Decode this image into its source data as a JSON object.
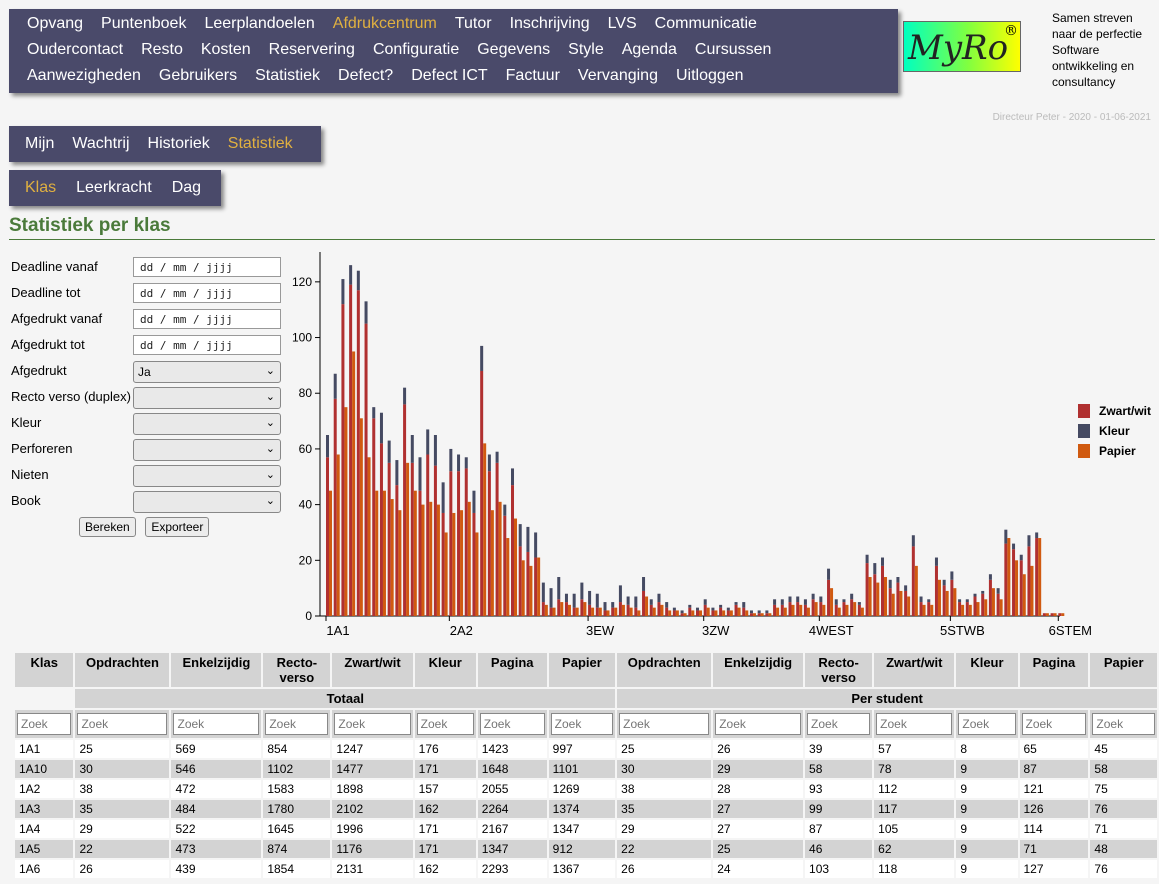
{
  "top_nav": {
    "rows": [
      [
        "Opvang",
        "Puntenboek",
        "Leerplandoelen",
        "Afdrukcentrum",
        "Tutor",
        "Inschrijving",
        "LVS",
        "Communicatie"
      ],
      [
        "Oudercontact",
        "Resto",
        "Kosten",
        "Reservering",
        "Configuratie",
        "Gegevens",
        "Style",
        "Agenda",
        "Cursussen"
      ],
      [
        "Aanwezigheden",
        "Gebruikers",
        "Statistiek",
        "Defect?",
        "Defect ICT",
        "Factuur",
        "Vervanging",
        "Uitloggen"
      ]
    ],
    "active": "Afdrukcentrum"
  },
  "logo": {
    "text": "MyRo",
    "reg": "®"
  },
  "tagline": "Samen streven naar de perfectie Software ontwikkeling en consultancy",
  "user_line": "Directeur Peter - 2020 - 01-06-2021",
  "sub_nav": {
    "items": [
      "Mijn",
      "Wachtrij",
      "Historiek",
      "Statistiek"
    ],
    "active": "Statistiek"
  },
  "sub_nav2": {
    "items": [
      "Klas",
      "Leerkracht",
      "Dag"
    ],
    "active": "Klas"
  },
  "page_title": "Statistiek per klas",
  "filters": {
    "deadline_from": {
      "label": "Deadline vanaf",
      "placeholder": "dd / mm / jjjj"
    },
    "deadline_to": {
      "label": "Deadline tot",
      "placeholder": "dd / mm / jjjj"
    },
    "printed_from": {
      "label": "Afgedrukt vanaf",
      "placeholder": "dd / mm / jjjj"
    },
    "printed_to": {
      "label": "Afgedrukt tot",
      "placeholder": "dd / mm / jjjj"
    },
    "printed": {
      "label": "Afgedrukt",
      "value": "Ja"
    },
    "duplex": {
      "label": "Recto verso (duplex)",
      "value": ""
    },
    "color": {
      "label": "Kleur",
      "value": ""
    },
    "perforate": {
      "label": "Perforeren",
      "value": ""
    },
    "staple": {
      "label": "Nieten",
      "value": ""
    },
    "book": {
      "label": "Book",
      "value": ""
    },
    "calc_button": "Bereken",
    "export_button": "Exporteer"
  },
  "chart_data": {
    "type": "bar",
    "ylim": [
      0,
      130
    ],
    "yticks": [
      0,
      20,
      40,
      60,
      80,
      100,
      120
    ],
    "x_labels": [
      "1A1",
      "2A2",
      "3EW",
      "3ZW",
      "4WEST",
      "5STWB",
      "6STEM"
    ],
    "colors": {
      "Zwart/wit": "#b03030",
      "Kleur": "#454a62",
      "Papier": "#d05a10"
    },
    "legend": [
      "Zwart/wit",
      "Kleur",
      "Papier"
    ],
    "legend_position": "right",
    "series": [
      {
        "name": "Zwart/wit",
        "values": [
          57,
          78,
          112,
          119,
          117,
          105,
          71,
          62,
          55,
          47,
          76,
          55,
          45,
          58,
          54,
          37,
          52,
          52,
          53,
          37,
          88,
          52,
          55,
          36,
          47,
          25,
          23,
          21,
          5,
          3,
          6,
          5,
          3,
          6,
          4,
          3,
          2,
          3,
          5,
          4,
          3,
          9,
          4,
          5,
          3,
          2,
          1,
          3,
          2,
          4,
          2,
          3,
          2,
          4,
          3,
          1,
          1,
          1,
          4,
          4,
          5,
          5,
          4,
          6,
          5,
          13,
          4,
          5,
          6,
          4,
          19,
          15,
          18,
          10,
          12,
          9,
          25,
          5,
          5,
          18,
          11,
          13,
          5,
          5,
          7,
          8,
          13,
          8,
          26,
          24,
          20,
          25,
          28,
          1,
          1,
          1
        ]
      },
      {
        "name": "Kleur",
        "values": [
          8,
          9,
          9,
          7,
          7,
          8,
          4,
          11,
          8,
          9,
          6,
          10,
          12,
          9,
          11,
          11,
          8,
          6,
          4,
          8,
          9,
          6,
          4,
          4,
          6,
          8,
          9,
          9,
          7,
          7,
          8,
          3,
          5,
          6,
          5,
          5,
          3,
          2,
          6,
          3,
          4,
          5,
          2,
          3,
          2,
          1,
          1,
          1,
          1,
          2,
          1,
          1,
          1,
          1,
          2,
          1,
          1,
          1,
          2,
          2,
          2,
          2,
          2,
          2,
          2,
          4,
          2,
          1,
          2,
          1,
          3,
          4,
          3,
          3,
          2,
          2,
          4,
          2,
          1,
          3,
          2,
          3,
          1,
          1,
          1,
          1,
          2,
          2,
          5,
          2,
          2,
          4,
          2,
          0,
          0,
          0
        ]
      },
      {
        "name": "Papier",
        "values": [
          45,
          58,
          75,
          95,
          71,
          57,
          45,
          45,
          42,
          38,
          55,
          45,
          40,
          41,
          40,
          30,
          37,
          38,
          41,
          30,
          62,
          38,
          41,
          28,
          35,
          20,
          18,
          21,
          4,
          3,
          5,
          4,
          3,
          5,
          3,
          3,
          2,
          3,
          4,
          3,
          2,
          7,
          3,
          4,
          2,
          2,
          1,
          2,
          2,
          3,
          2,
          2,
          2,
          3,
          2,
          1,
          1,
          1,
          3,
          3,
          4,
          4,
          3,
          5,
          4,
          10,
          3,
          4,
          5,
          3,
          14,
          12,
          14,
          8,
          9,
          7,
          18,
          4,
          4,
          13,
          9,
          10,
          4,
          4,
          5,
          6,
          10,
          6,
          28,
          20,
          15,
          18,
          28,
          1,
          1,
          1
        ]
      }
    ]
  },
  "table": {
    "headers": [
      "Klas",
      "Opdrachten",
      "Enkelzijdig",
      "Recto-verso",
      "Zwart/wit",
      "Kleur",
      "Pagina",
      "Papier",
      "Opdrachten",
      "Enkelzijdig",
      "Recto-verso",
      "Zwart/wit",
      "Kleur",
      "Pagina",
      "Papier"
    ],
    "group_total": "Totaal",
    "group_student": "Per student",
    "filter_placeholder": "Zoek",
    "rows": [
      [
        "1A1",
        "25",
        "569",
        "854",
        "1247",
        "176",
        "1423",
        "997",
        "25",
        "26",
        "39",
        "57",
        "8",
        "65",
        "45"
      ],
      [
        "1A10",
        "30",
        "546",
        "1102",
        "1477",
        "171",
        "1648",
        "1101",
        "30",
        "29",
        "58",
        "78",
        "9",
        "87",
        "58"
      ],
      [
        "1A2",
        "38",
        "472",
        "1583",
        "1898",
        "157",
        "2055",
        "1269",
        "38",
        "28",
        "93",
        "112",
        "9",
        "121",
        "75"
      ],
      [
        "1A3",
        "35",
        "484",
        "1780",
        "2102",
        "162",
        "2264",
        "1374",
        "35",
        "27",
        "99",
        "117",
        "9",
        "126",
        "76"
      ],
      [
        "1A4",
        "29",
        "522",
        "1645",
        "1996",
        "171",
        "2167",
        "1347",
        "29",
        "27",
        "87",
        "105",
        "9",
        "114",
        "71"
      ],
      [
        "1A5",
        "22",
        "473",
        "874",
        "1176",
        "171",
        "1347",
        "912",
        "22",
        "25",
        "46",
        "62",
        "9",
        "71",
        "48"
      ],
      [
        "1A6",
        "26",
        "439",
        "1854",
        "2131",
        "162",
        "2293",
        "1367",
        "26",
        "24",
        "103",
        "118",
        "9",
        "127",
        "76"
      ]
    ]
  }
}
